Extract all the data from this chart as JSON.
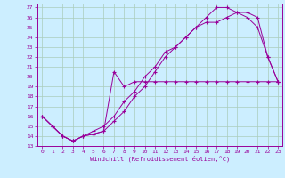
{
  "xlabel": "Windchill (Refroidissement éolien,°C)",
  "bg_color": "#cceeff",
  "grid_color": "#aaccbb",
  "line_color": "#990099",
  "xlim_min": -0.5,
  "xlim_max": 23.4,
  "ylim_min": 13,
  "ylim_max": 27.4,
  "xticks": [
    0,
    1,
    2,
    3,
    4,
    5,
    6,
    7,
    8,
    9,
    10,
    11,
    12,
    13,
    14,
    15,
    16,
    17,
    18,
    19,
    20,
    21,
    22,
    23
  ],
  "yticks": [
    13,
    14,
    15,
    16,
    17,
    18,
    19,
    20,
    21,
    22,
    23,
    24,
    25,
    26,
    27
  ],
  "line1_x": [
    0,
    1,
    2,
    3,
    4,
    5,
    6,
    7,
    8,
    9,
    10,
    11,
    12,
    13,
    14,
    15,
    16,
    17,
    18,
    19,
    20,
    21,
    22,
    23
  ],
  "line1_y": [
    16,
    15,
    14,
    13.5,
    14,
    14.2,
    14.5,
    15.5,
    16.5,
    18,
    19,
    20.5,
    22,
    23,
    24,
    25,
    25.5,
    25.5,
    26,
    26.5,
    26.5,
    26,
    22,
    19.5
  ],
  "line2_x": [
    0,
    1,
    2,
    3,
    4,
    5,
    6,
    7,
    8,
    9,
    10,
    11,
    12,
    13,
    14,
    15,
    16,
    17,
    18,
    19,
    20,
    21,
    22,
    23
  ],
  "line2_y": [
    16,
    15,
    14,
    13.5,
    14,
    14.5,
    15,
    16,
    17.5,
    18.5,
    20,
    21,
    22.5,
    23,
    24,
    25,
    26,
    27,
    27,
    26.5,
    26,
    25,
    22,
    19.5
  ],
  "line3_x": [
    0,
    1,
    2,
    3,
    4,
    5,
    6,
    7,
    8,
    9,
    10,
    11,
    12,
    13,
    14,
    15,
    16,
    17,
    18,
    19,
    20,
    21,
    22,
    23
  ],
  "line3_y": [
    16,
    15,
    14,
    13.5,
    14,
    14.2,
    14.5,
    20.5,
    19,
    19.5,
    19.5,
    19.5,
    19.5,
    19.5,
    19.5,
    19.5,
    19.5,
    19.5,
    19.5,
    19.5,
    19.5,
    19.5,
    19.5,
    19.5
  ]
}
